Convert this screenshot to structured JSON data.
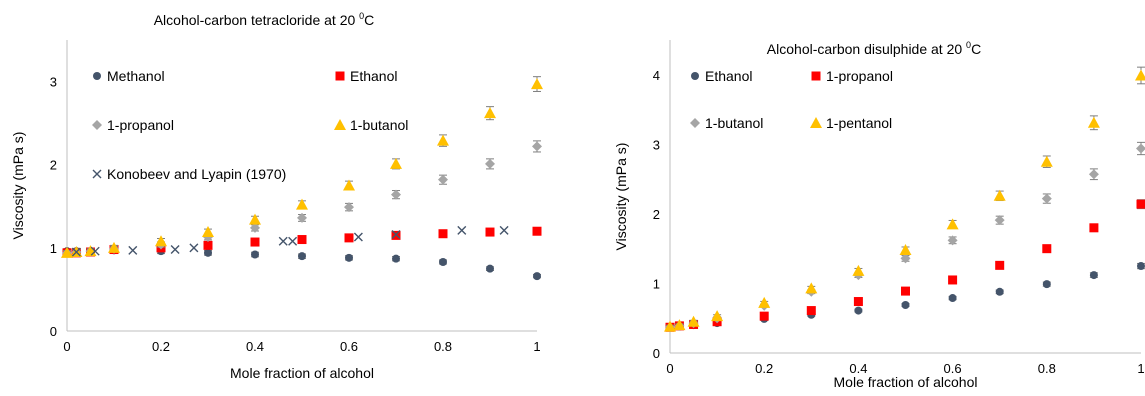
{
  "chart_data": [
    {
      "type": "scatter",
      "title": "Alcohol-carbon tetracloride at 20 ",
      "title_sup": "0",
      "title_unit": "C",
      "xlabel": "Mole fraction of alcohol",
      "ylabel": "Viscosity (mPa s)",
      "xlim": [
        0,
        1
      ],
      "ylim": [
        0,
        3.5
      ],
      "xticks": [
        "0",
        "0.2",
        "0.4",
        "0.6",
        "0.8",
        "1"
      ],
      "yticks": [
        "0",
        "1",
        "2",
        "3"
      ],
      "grid": false,
      "legend": "inside, two columns top-left",
      "series": [
        {
          "name": "Methanol",
          "marker": "circle",
          "color": "#44546a",
          "error_bars": true,
          "x": [
            0,
            0.02,
            0.05,
            0.1,
            0.2,
            0.3,
            0.4,
            0.5,
            0.6,
            0.7,
            0.8,
            0.9,
            1
          ],
          "y": [
            0.96,
            0.96,
            0.96,
            0.97,
            0.96,
            0.94,
            0.92,
            0.9,
            0.88,
            0.87,
            0.83,
            0.75,
            0.66
          ]
        },
        {
          "name": "Ethanol",
          "marker": "square",
          "color": "#ff0000",
          "error_bars": true,
          "x": [
            0,
            0.02,
            0.05,
            0.1,
            0.2,
            0.3,
            0.4,
            0.5,
            0.6,
            0.7,
            0.8,
            0.9,
            1
          ],
          "y": [
            0.94,
            0.94,
            0.95,
            0.98,
            1.0,
            1.03,
            1.07,
            1.1,
            1.12,
            1.15,
            1.17,
            1.19,
            1.2
          ]
        },
        {
          "name": "1-propanol",
          "marker": "diamond",
          "color": "#a5a5a5",
          "error_bars": true,
          "x": [
            0,
            0.02,
            0.05,
            0.1,
            0.2,
            0.3,
            0.4,
            0.5,
            0.6,
            0.7,
            0.8,
            0.9,
            1
          ],
          "y": [
            0.94,
            0.95,
            0.96,
            0.99,
            1.04,
            1.13,
            1.24,
            1.36,
            1.49,
            1.64,
            1.82,
            2.01,
            2.22
          ]
        },
        {
          "name": "1-butanol",
          "marker": "triangle",
          "color": "#ffc000",
          "error_bars": true,
          "x": [
            0,
            0.02,
            0.05,
            0.1,
            0.2,
            0.3,
            0.4,
            0.5,
            0.6,
            0.7,
            0.8,
            0.9,
            1
          ],
          "y": [
            0.94,
            0.95,
            0.96,
            1.0,
            1.08,
            1.19,
            1.34,
            1.52,
            1.75,
            2.01,
            2.29,
            2.62,
            2.97
          ]
        },
        {
          "name": "Konobeev and Lyapin (1970)",
          "marker": "x",
          "color": "#44546a",
          "error_bars": false,
          "x": [
            0.02,
            0.06,
            0.14,
            0.23,
            0.27,
            0.46,
            0.48,
            0.62,
            0.7,
            0.84,
            0.93
          ],
          "y": [
            0.95,
            0.96,
            0.97,
            0.98,
            1.0,
            1.08,
            1.08,
            1.13,
            1.16,
            1.21,
            1.21
          ]
        }
      ]
    },
    {
      "type": "scatter",
      "title": "Alcohol-carbon disulphide at 20 ",
      "title_sup": "0",
      "title_unit": "C",
      "xlabel": "Mole fraction of alcohol",
      "ylabel": "Viscosity (mPa s)",
      "xlim": [
        0,
        1
      ],
      "ylim": [
        0,
        4.5
      ],
      "xticks": [
        "0",
        "0.2",
        "0.4",
        "0.6",
        "0.8",
        "1"
      ],
      "yticks": [
        "0",
        "1",
        "2",
        "3",
        "4"
      ],
      "grid": false,
      "legend": "inside, two columns top-left",
      "series": [
        {
          "name": "Ethanol",
          "marker": "circle",
          "color": "#44546a",
          "error_bars": true,
          "x": [
            0,
            0.02,
            0.05,
            0.1,
            0.2,
            0.3,
            0.4,
            0.5,
            0.6,
            0.7,
            0.8,
            0.9,
            1
          ],
          "y": [
            0.37,
            0.38,
            0.4,
            0.43,
            0.49,
            0.55,
            0.61,
            0.69,
            0.79,
            0.88,
            0.99,
            1.12,
            1.25
          ]
        },
        {
          "name": "1-propanol",
          "marker": "square",
          "color": "#ff0000",
          "error_bars": true,
          "x": [
            0,
            0.02,
            0.05,
            0.1,
            0.2,
            0.3,
            0.4,
            0.5,
            0.6,
            0.7,
            0.8,
            0.9,
            1
          ],
          "y": [
            0.37,
            0.39,
            0.41,
            0.45,
            0.53,
            0.61,
            0.74,
            0.89,
            1.05,
            1.26,
            1.5,
            1.8,
            2.14
          ]
        },
        {
          "name": "1-butanol",
          "marker": "diamond",
          "color": "#a5a5a5",
          "error_bars": true,
          "x": [
            0,
            0.02,
            0.05,
            0.1,
            0.2,
            0.3,
            0.4,
            0.5,
            0.6,
            0.7,
            0.8,
            0.9,
            1
          ],
          "y": [
            0.37,
            0.39,
            0.43,
            0.5,
            0.68,
            0.88,
            1.12,
            1.36,
            1.62,
            1.91,
            2.22,
            2.57,
            2.94
          ]
        },
        {
          "name": "1-pentanol",
          "marker": "triangle",
          "color": "#ffc000",
          "error_bars": true,
          "x": [
            0,
            0.02,
            0.05,
            0.1,
            0.2,
            0.3,
            0.4,
            0.5,
            0.6,
            0.7,
            0.8,
            0.9,
            1
          ],
          "y": [
            0.38,
            0.4,
            0.45,
            0.53,
            0.72,
            0.93,
            1.18,
            1.48,
            1.85,
            2.26,
            2.75,
            3.31,
            3.99
          ]
        }
      ]
    }
  ]
}
